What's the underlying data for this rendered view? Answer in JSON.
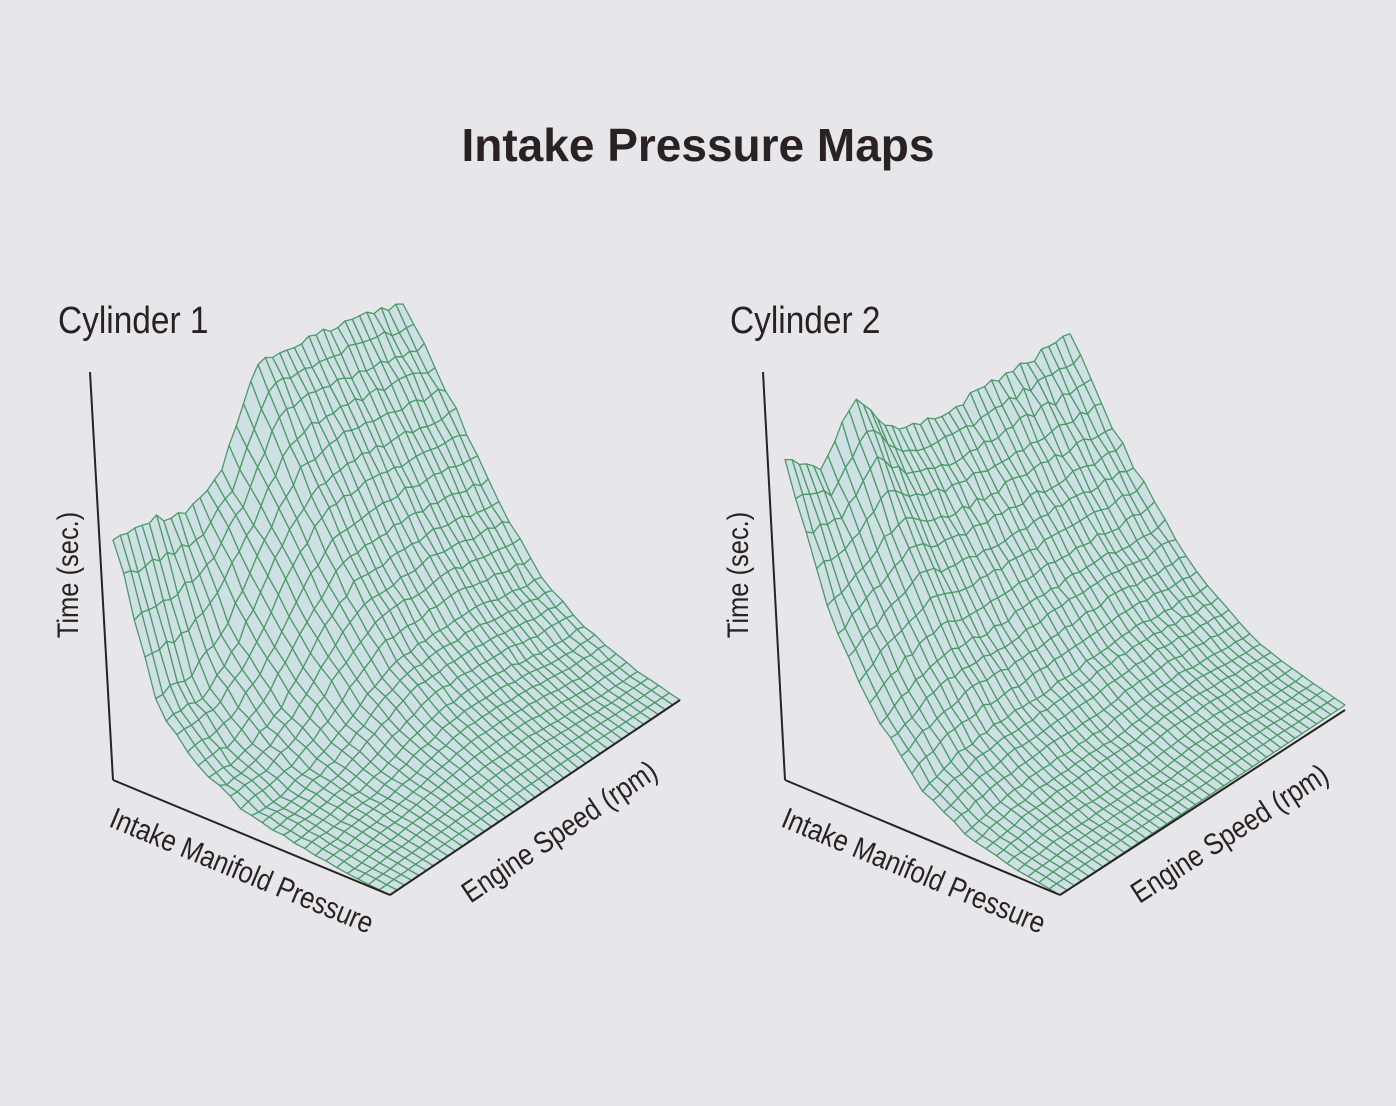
{
  "title": "Intake Pressure Maps",
  "colors": {
    "mesh_line": "#4c9a68",
    "surface_fill": "#cfe0e5",
    "axis": "#2a2222",
    "background": "#e7e7eb"
  },
  "chart_data": [
    {
      "type": "surface",
      "title": "Cylinder 1",
      "xlabel": "Intake Manifold Pressure",
      "ylabel": "Engine Speed (rpm)",
      "zlabel": "Time (sec.)",
      "note": "relative heights, no ticks printed",
      "z_grid": [
        [
          0.61,
          0.59,
          0.54,
          0.59,
          0.8,
          0.78,
          0.76,
          0.74,
          0.7
        ],
        [
          0.22,
          0.22,
          0.3,
          0.45,
          0.56,
          0.58,
          0.56,
          0.54,
          0.52
        ],
        [
          0.11,
          0.11,
          0.17,
          0.28,
          0.36,
          0.36,
          0.36,
          0.34,
          0.32
        ],
        [
          0.05,
          0.06,
          0.09,
          0.15,
          0.2,
          0.2,
          0.2,
          0.18,
          0.16
        ],
        [
          0.03,
          0.04,
          0.05,
          0.08,
          0.11,
          0.11,
          0.1,
          0.08,
          0.08
        ],
        [
          0.01,
          0.02,
          0.03,
          0.04,
          0.05,
          0.05,
          0.04,
          0.03,
          0.03
        ],
        [
          0,
          0,
          0,
          0,
          0,
          0,
          0,
          0,
          0
        ]
      ]
    },
    {
      "type": "surface",
      "title": "Cylinder 2",
      "xlabel": "Intake Manifold Pressure",
      "ylabel": "Engine Speed (rpm)",
      "zlabel": "Time (sec.)",
      "note": "relative heights, no ticks printed",
      "z_grid": [
        [
          0.8,
          0.72,
          0.84,
          0.7,
          0.66,
          0.65,
          0.65,
          0.64,
          0.64
        ],
        [
          0.45,
          0.5,
          0.55,
          0.5,
          0.48,
          0.47,
          0.46,
          0.45,
          0.44
        ],
        [
          0.25,
          0.3,
          0.32,
          0.3,
          0.3,
          0.3,
          0.3,
          0.28,
          0.28
        ],
        [
          0.12,
          0.15,
          0.16,
          0.16,
          0.16,
          0.17,
          0.17,
          0.16,
          0.15
        ],
        [
          0.05,
          0.07,
          0.08,
          0.08,
          0.08,
          0.09,
          0.09,
          0.08,
          0.07
        ],
        [
          0.02,
          0.03,
          0.03,
          0.03,
          0.03,
          0.04,
          0.04,
          0.03,
          0.03
        ],
        [
          0,
          0,
          0,
          0,
          0,
          0,
          0,
          0,
          0
        ]
      ]
    }
  ]
}
